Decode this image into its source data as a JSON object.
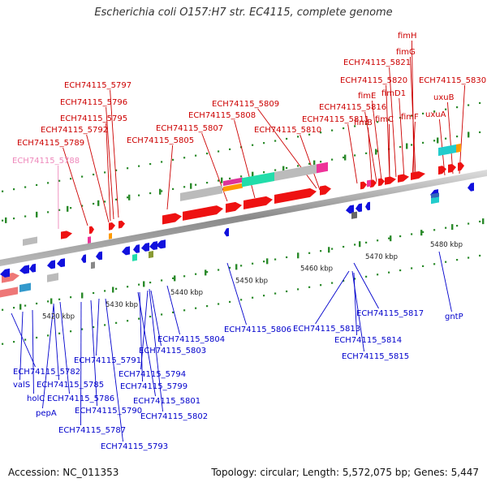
{
  "title": "Escherichia coli O157:H7 str. EC4115, complete genome",
  "footer": {
    "accession": "Accession: NC_011353",
    "topology": "Topology: circular; Length: 5,572,075 bp; Genes: 5,447"
  },
  "colors": {
    "forward_label": "#cc0000",
    "reverse_label": "#0000cc",
    "pseudo_label": "#ee88bb",
    "axis": "#999999",
    "tick": "#2a8a2a"
  },
  "scale_labels": [
    {
      "text": "5420 kbp"
    },
    {
      "text": "5430 kbp"
    },
    {
      "text": "5440 kbp"
    },
    {
      "text": "5450 kbp"
    },
    {
      "text": "5460 kbp"
    },
    {
      "text": "5470 kbp"
    },
    {
      "text": "5480 kbp"
    }
  ],
  "top_labels": [
    {
      "text": "fimH",
      "type": "forward"
    },
    {
      "text": "fimG",
      "type": "forward"
    },
    {
      "text": "ECH74115_5821",
      "type": "forward"
    },
    {
      "text": "ECH74115_5820",
      "type": "forward"
    },
    {
      "text": "ECH74115_5830",
      "type": "forward"
    },
    {
      "text": "fimE",
      "type": "forward"
    },
    {
      "text": "fimD1",
      "type": "forward"
    },
    {
      "text": "uxuB",
      "type": "forward"
    },
    {
      "text": "ECH74115_5797",
      "type": "forward"
    },
    {
      "text": "ECH74115_5796",
      "type": "forward"
    },
    {
      "text": "ECH74115_5809",
      "type": "forward"
    },
    {
      "text": "ECH74115_5816",
      "type": "forward"
    },
    {
      "text": "uxuA",
      "type": "forward"
    },
    {
      "text": "ECH74115_5795",
      "type": "forward"
    },
    {
      "text": "ECH74115_5808",
      "type": "forward"
    },
    {
      "text": "ECH74115_5811",
      "type": "forward"
    },
    {
      "text": "fimB",
      "type": "forward"
    },
    {
      "text": "fimC",
      "type": "forward"
    },
    {
      "text": "fimF",
      "type": "forward"
    },
    {
      "text": "ECH74115_5792",
      "type": "forward"
    },
    {
      "text": "ECH74115_5807",
      "type": "forward"
    },
    {
      "text": "ECH74115_5810",
      "type": "forward"
    },
    {
      "text": "ECH74115_5789",
      "type": "forward"
    },
    {
      "text": "ECH74115_5805",
      "type": "forward"
    },
    {
      "text": "ECH74115_5788",
      "type": "pseudo"
    }
  ],
  "bottom_labels": [
    {
      "text": "ECH74115_5804"
    },
    {
      "text": "ECH74115_5806"
    },
    {
      "text": "ECH74115_5813"
    },
    {
      "text": "ECH74115_5817"
    },
    {
      "text": "gntP"
    },
    {
      "text": "ECH74115_5803"
    },
    {
      "text": "ECH74115_5814"
    },
    {
      "text": "ECH74115_5791"
    },
    {
      "text": "ECH74115_5815"
    },
    {
      "text": "ECH74115_5782"
    },
    {
      "text": "ECH74115_5794"
    },
    {
      "text": "valS"
    },
    {
      "text": "ECH74115_5785"
    },
    {
      "text": "ECH74115_5799"
    },
    {
      "text": "holC"
    },
    {
      "text": "ECH74115_5786"
    },
    {
      "text": "ECH74115_5801"
    },
    {
      "text": "pepA"
    },
    {
      "text": "ECH74115_5790"
    },
    {
      "text": "ECH74115_5802"
    },
    {
      "text": "ECH74115_5787"
    },
    {
      "text": "ECH74115_5793"
    }
  ]
}
